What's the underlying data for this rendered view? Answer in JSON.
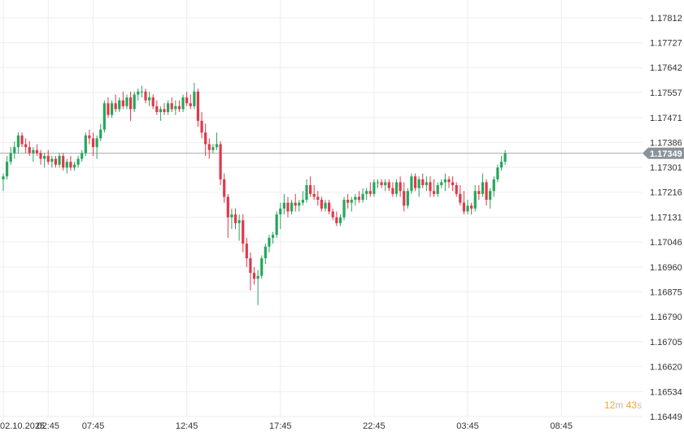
{
  "colors": {
    "up": "#26a65b",
    "down": "#e0384b",
    "grid": "#eeeeee",
    "current_line": "#a0a8ad",
    "current_tag": "#8a9399",
    "countdown": "#f5a623"
  },
  "countdown": {
    "minutes": "12",
    "m_unit": "m",
    "seconds": "43",
    "s_unit": "s"
  },
  "chart_data": {
    "type": "candlestick",
    "title": "",
    "xlabel": "",
    "ylabel": "",
    "ylim": [
      1.16449,
      1.17812
    ],
    "y_ticks": [
      "1.17812",
      "1.17727",
      "1.17642",
      "1.17557",
      "1.17471",
      "1.17386",
      "1.17301",
      "1.17216",
      "1.17131",
      "1.17046",
      "1.16960",
      "1.16875",
      "1.16790",
      "1.16705",
      "1.16620",
      "1.16534",
      "1.16449"
    ],
    "x_ticks": [
      "02.10.2025",
      "02:45",
      "07:45",
      "12:45",
      "17:45",
      "22:45",
      "03:45",
      "08:45"
    ],
    "x_tick_index": [
      0,
      12,
      24,
      49,
      74,
      99,
      124,
      149
    ],
    "current_price": 1.17349,
    "grid": true,
    "candles": [
      [
        1.1726,
        1.1728,
        1.1722,
        1.1727
      ],
      [
        1.1727,
        1.1734,
        1.1726,
        1.1732
      ],
      [
        1.1732,
        1.1737,
        1.1731,
        1.1735
      ],
      [
        1.1735,
        1.1739,
        1.1733,
        1.1737
      ],
      [
        1.1737,
        1.1742,
        1.1735,
        1.1741
      ],
      [
        1.1741,
        1.1742,
        1.1737,
        1.1738
      ],
      [
        1.1738,
        1.174,
        1.1735,
        1.1737
      ],
      [
        1.1737,
        1.1739,
        1.1734,
        1.1735
      ],
      [
        1.1735,
        1.1737,
        1.1732,
        1.1736
      ],
      [
        1.1736,
        1.1738,
        1.1734,
        1.1735
      ],
      [
        1.1735,
        1.1736,
        1.1731,
        1.1733
      ],
      [
        1.1733,
        1.1735,
        1.173,
        1.1734
      ],
      [
        1.1734,
        1.1736,
        1.1731,
        1.1732
      ],
      [
        1.1732,
        1.1734,
        1.173,
        1.1733
      ],
      [
        1.1733,
        1.1734,
        1.173,
        1.1731
      ],
      [
        1.1731,
        1.1735,
        1.173,
        1.1734
      ],
      [
        1.1734,
        1.1735,
        1.1729,
        1.173
      ],
      [
        1.173,
        1.1733,
        1.1728,
        1.1732
      ],
      [
        1.1732,
        1.1734,
        1.1729,
        1.173
      ],
      [
        1.173,
        1.1732,
        1.1729,
        1.1731
      ],
      [
        1.1731,
        1.1734,
        1.173,
        1.1733
      ],
      [
        1.1733,
        1.1736,
        1.1732,
        1.1735
      ],
      [
        1.1735,
        1.1742,
        1.1734,
        1.1741
      ],
      [
        1.1741,
        1.1743,
        1.1738,
        1.174
      ],
      [
        1.174,
        1.1742,
        1.1734,
        1.1737
      ],
      [
        1.1737,
        1.1741,
        1.1733,
        1.174
      ],
      [
        1.174,
        1.1745,
        1.1739,
        1.1743
      ],
      [
        1.1743,
        1.1753,
        1.1742,
        1.1752
      ],
      [
        1.1752,
        1.1754,
        1.1747,
        1.1748
      ],
      [
        1.1748,
        1.1753,
        1.1747,
        1.1752
      ],
      [
        1.1752,
        1.1755,
        1.1749,
        1.175
      ],
      [
        1.175,
        1.1754,
        1.1749,
        1.1753
      ],
      [
        1.1753,
        1.1756,
        1.175,
        1.1751
      ],
      [
        1.1751,
        1.1755,
        1.175,
        1.1754
      ],
      [
        1.1754,
        1.1756,
        1.1746,
        1.175
      ],
      [
        1.175,
        1.1756,
        1.1749,
        1.1755
      ],
      [
        1.1755,
        1.1757,
        1.1753,
        1.1756
      ],
      [
        1.1756,
        1.1758,
        1.1754,
        1.1756
      ],
      [
        1.1756,
        1.1757,
        1.1752,
        1.1753
      ],
      [
        1.1753,
        1.1756,
        1.1751,
        1.1754
      ],
      [
        1.1754,
        1.1755,
        1.175,
        1.1751
      ],
      [
        1.1751,
        1.1753,
        1.1748,
        1.1749
      ],
      [
        1.1749,
        1.1751,
        1.1746,
        1.175
      ],
      [
        1.175,
        1.1752,
        1.1748,
        1.1749
      ],
      [
        1.1749,
        1.1753,
        1.1748,
        1.1752
      ],
      [
        1.1752,
        1.1754,
        1.1749,
        1.175
      ],
      [
        1.175,
        1.1753,
        1.1748,
        1.1751
      ],
      [
        1.1751,
        1.1753,
        1.1749,
        1.175
      ],
      [
        1.175,
        1.1755,
        1.1749,
        1.1754
      ],
      [
        1.1754,
        1.1756,
        1.1751,
        1.1752
      ],
      [
        1.1752,
        1.1755,
        1.175,
        1.1751
      ],
      [
        1.1751,
        1.1759,
        1.175,
        1.1756
      ],
      [
        1.1756,
        1.1757,
        1.1744,
        1.1746
      ],
      [
        1.1746,
        1.1749,
        1.174,
        1.1742
      ],
      [
        1.1742,
        1.1745,
        1.1734,
        1.1738
      ],
      [
        1.1738,
        1.174,
        1.1733,
        1.1736
      ],
      [
        1.1736,
        1.1738,
        1.1735,
        1.1737
      ],
      [
        1.1737,
        1.1742,
        1.1736,
        1.1738
      ],
      [
        1.1738,
        1.1739,
        1.1724,
        1.1726
      ],
      [
        1.1726,
        1.1728,
        1.1718,
        1.172
      ],
      [
        1.172,
        1.1721,
        1.1706,
        1.1713
      ],
      [
        1.1713,
        1.1716,
        1.1709,
        1.1714
      ],
      [
        1.1714,
        1.1716,
        1.1709,
        1.1711
      ],
      [
        1.1711,
        1.1714,
        1.1705,
        1.1712
      ],
      [
        1.1712,
        1.1714,
        1.1701,
        1.1704
      ],
      [
        1.1704,
        1.1706,
        1.1696,
        1.1699
      ],
      [
        1.1699,
        1.1701,
        1.1688,
        1.1694
      ],
      [
        1.1694,
        1.1696,
        1.169,
        1.1692
      ],
      [
        1.1692,
        1.1695,
        1.1683,
        1.1693
      ],
      [
        1.1693,
        1.17,
        1.1692,
        1.1699
      ],
      [
        1.1699,
        1.1704,
        1.1697,
        1.1703
      ],
      [
        1.1703,
        1.1707,
        1.1701,
        1.1706
      ],
      [
        1.1706,
        1.1708,
        1.1704,
        1.1707
      ],
      [
        1.1707,
        1.1715,
        1.1706,
        1.1714
      ],
      [
        1.1714,
        1.1718,
        1.1709,
        1.1716
      ],
      [
        1.1716,
        1.1721,
        1.1714,
        1.1718
      ],
      [
        1.1718,
        1.172,
        1.1713,
        1.1715
      ],
      [
        1.1715,
        1.1719,
        1.1714,
        1.1718
      ],
      [
        1.1718,
        1.1721,
        1.1715,
        1.1717
      ],
      [
        1.1717,
        1.1719,
        1.1715,
        1.1718
      ],
      [
        1.1718,
        1.1722,
        1.1717,
        1.1719
      ],
      [
        1.1719,
        1.1726,
        1.1718,
        1.1724
      ],
      [
        1.1724,
        1.1727,
        1.172,
        1.1721
      ],
      [
        1.1721,
        1.1724,
        1.1719,
        1.172
      ],
      [
        1.172,
        1.1722,
        1.1717,
        1.1719
      ],
      [
        1.1719,
        1.172,
        1.1715,
        1.1716
      ],
      [
        1.1716,
        1.1719,
        1.1715,
        1.1718
      ],
      [
        1.1718,
        1.1719,
        1.1714,
        1.1715
      ],
      [
        1.1715,
        1.1716,
        1.1712,
        1.1713
      ],
      [
        1.1713,
        1.1715,
        1.171,
        1.1711
      ],
      [
        1.1711,
        1.1714,
        1.171,
        1.1713
      ],
      [
        1.1713,
        1.172,
        1.1712,
        1.1719
      ],
      [
        1.1719,
        1.1721,
        1.1716,
        1.1718
      ],
      [
        1.1718,
        1.172,
        1.1715,
        1.1719
      ],
      [
        1.1719,
        1.1721,
        1.1717,
        1.172
      ],
      [
        1.172,
        1.1722,
        1.1718,
        1.1719
      ],
      [
        1.1719,
        1.1723,
        1.1718,
        1.1721
      ],
      [
        1.1721,
        1.1723,
        1.1719,
        1.1722
      ],
      [
        1.1722,
        1.1725,
        1.172,
        1.1721
      ],
      [
        1.1721,
        1.1726,
        1.172,
        1.1725
      ],
      [
        1.1725,
        1.1726,
        1.1723,
        1.1725
      ],
      [
        1.1725,
        1.1726,
        1.1723,
        1.1724
      ],
      [
        1.1724,
        1.1726,
        1.1722,
        1.1725
      ],
      [
        1.1725,
        1.1726,
        1.1722,
        1.1723
      ],
      [
        1.1723,
        1.1725,
        1.172,
        1.1721
      ],
      [
        1.1721,
        1.1726,
        1.172,
        1.1725
      ],
      [
        1.1725,
        1.1727,
        1.172,
        1.1722
      ],
      [
        1.1722,
        1.1725,
        1.1715,
        1.1717
      ],
      [
        1.1717,
        1.1723,
        1.1716,
        1.1722
      ],
      [
        1.1722,
        1.1728,
        1.1721,
        1.1727
      ],
      [
        1.1727,
        1.1728,
        1.1722,
        1.1723
      ],
      [
        1.1723,
        1.1727,
        1.172,
        1.1726
      ],
      [
        1.1726,
        1.1728,
        1.1723,
        1.1724
      ],
      [
        1.1724,
        1.1727,
        1.1722,
        1.1725
      ],
      [
        1.1725,
        1.1727,
        1.172,
        1.1722
      ],
      [
        1.1722,
        1.1726,
        1.172,
        1.1721
      ],
      [
        1.1721,
        1.1725,
        1.172,
        1.1724
      ],
      [
        1.1724,
        1.1726,
        1.1723,
        1.1725
      ],
      [
        1.1725,
        1.1728,
        1.1722,
        1.1726
      ],
      [
        1.1726,
        1.1727,
        1.1723,
        1.1725
      ],
      [
        1.1725,
        1.1727,
        1.1722,
        1.1724
      ],
      [
        1.1724,
        1.1725,
        1.172,
        1.1721
      ],
      [
        1.1721,
        1.1724,
        1.1717,
        1.1718
      ],
      [
        1.1718,
        1.1722,
        1.1714,
        1.1715
      ],
      [
        1.1715,
        1.1719,
        1.1714,
        1.1717
      ],
      [
        1.1717,
        1.1718,
        1.1714,
        1.1716
      ],
      [
        1.1716,
        1.1724,
        1.1715,
        1.1722
      ],
      [
        1.1722,
        1.1724,
        1.1719,
        1.1721
      ],
      [
        1.1721,
        1.1728,
        1.172,
        1.1725
      ],
      [
        1.1725,
        1.1726,
        1.1717,
        1.1719
      ],
      [
        1.1719,
        1.1723,
        1.1716,
        1.1722
      ],
      [
        1.1722,
        1.1727,
        1.172,
        1.1726
      ],
      [
        1.1726,
        1.1731,
        1.1725,
        1.173
      ],
      [
        1.173,
        1.1734,
        1.1729,
        1.1732
      ],
      [
        1.1732,
        1.1736,
        1.1731,
        1.17349
      ]
    ]
  }
}
